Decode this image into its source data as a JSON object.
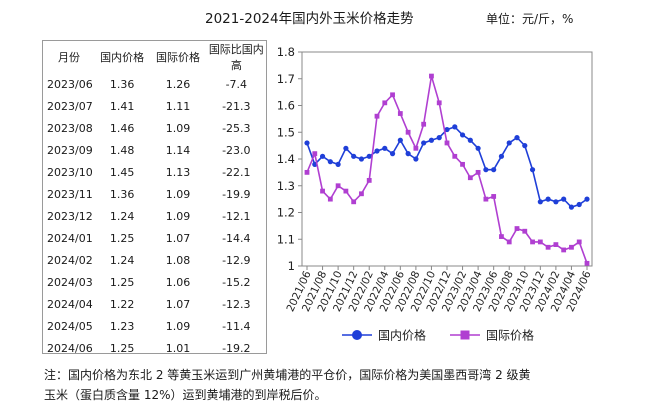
{
  "title": "2021-2024年国内外玉米价格走势",
  "unit_label": "单位：元/斤，%",
  "table": {
    "headers": [
      "月份",
      "国内价格",
      "国际价格",
      "国际比国内高"
    ],
    "rows": [
      [
        "2023/06",
        "1.36",
        "1.26",
        "-7.4"
      ],
      [
        "2023/07",
        "1.41",
        "1.11",
        "-21.3"
      ],
      [
        "2023/08",
        "1.46",
        "1.09",
        "-25.3"
      ],
      [
        "2023/09",
        "1.48",
        "1.14",
        "-23.0"
      ],
      [
        "2023/10",
        "1.45",
        "1.13",
        "-22.1"
      ],
      [
        "2023/11",
        "1.36",
        "1.09",
        "-19.9"
      ],
      [
        "2023/12",
        "1.24",
        "1.09",
        "-12.1"
      ],
      [
        "2024/01",
        "1.25",
        "1.07",
        "-14.4"
      ],
      [
        "2024/02",
        "1.24",
        "1.08",
        "-12.9"
      ],
      [
        "2024/03",
        "1.25",
        "1.06",
        "-15.2"
      ],
      [
        "2024/04",
        "1.22",
        "1.07",
        "-12.3"
      ],
      [
        "2024/05",
        "1.23",
        "1.09",
        "-11.4"
      ],
      [
        "2024/06",
        "1.25",
        "1.01",
        "-19.2"
      ]
    ]
  },
  "note_line1": "注：国内价格为东北 2 等黄玉米运到广州黄埔港的平仓价，国际价格为美国墨西哥湾 2 级黄",
  "note_line2": "玉米（蛋白质含量 12%）运到黄埔港的到岸税后价。",
  "colors": {
    "domestic": "#1f3fd8",
    "international": "#b03fd1",
    "axis": "#888888"
  },
  "chart_data": {
    "type": "line",
    "x": [
      "2021/06",
      "2021/07",
      "2021/08",
      "2021/09",
      "2021/10",
      "2021/11",
      "2021/12",
      "2022/01",
      "2022/02",
      "2022/03",
      "2022/04",
      "2022/05",
      "2022/06",
      "2022/07",
      "2022/08",
      "2022/09",
      "2022/10",
      "2022/11",
      "2022/12",
      "2023/01",
      "2023/02",
      "2023/03",
      "2023/04",
      "2023/05",
      "2023/06",
      "2023/07",
      "2023/08",
      "2023/09",
      "2023/10",
      "2023/11",
      "2023/12",
      "2024/01",
      "2024/02",
      "2024/03",
      "2024/04",
      "2024/05",
      "2024/06"
    ],
    "x_tick_labels": [
      "2021/06",
      "2021/08",
      "2021/10",
      "2021/12",
      "2022/02",
      "2022/04",
      "2022/06",
      "2022/08",
      "2022/10",
      "2022/12",
      "2023/02",
      "2023/04",
      "2023/06",
      "2023/08",
      "2023/10",
      "2023/12",
      "2024/02",
      "2024/04",
      "2024/06"
    ],
    "series": [
      {
        "name": "国内价格",
        "marker": "circle",
        "values": [
          1.46,
          1.38,
          1.41,
          1.39,
          1.38,
          1.44,
          1.41,
          1.4,
          1.41,
          1.43,
          1.44,
          1.42,
          1.47,
          1.42,
          1.4,
          1.46,
          1.47,
          1.48,
          1.51,
          1.52,
          1.49,
          1.47,
          1.44,
          1.36,
          1.36,
          1.41,
          1.46,
          1.48,
          1.45,
          1.36,
          1.24,
          1.25,
          1.24,
          1.25,
          1.22,
          1.23,
          1.25
        ]
      },
      {
        "name": "国际价格",
        "marker": "square",
        "values": [
          1.35,
          1.42,
          1.28,
          1.25,
          1.3,
          1.28,
          1.24,
          1.27,
          1.32,
          1.56,
          1.61,
          1.64,
          1.57,
          1.5,
          1.44,
          1.53,
          1.71,
          1.61,
          1.46,
          1.41,
          1.38,
          1.33,
          1.35,
          1.25,
          1.26,
          1.11,
          1.09,
          1.14,
          1.13,
          1.09,
          1.09,
          1.07,
          1.08,
          1.06,
          1.07,
          1.09,
          1.01
        ]
      }
    ],
    "ylim": [
      1,
      1.8
    ],
    "y_ticks": [
      "1",
      "1.1",
      "1.2",
      "1.3",
      "1.4",
      "1.5",
      "1.6",
      "1.7",
      "1.8"
    ],
    "legend_position": "bottom",
    "grid": false
  }
}
